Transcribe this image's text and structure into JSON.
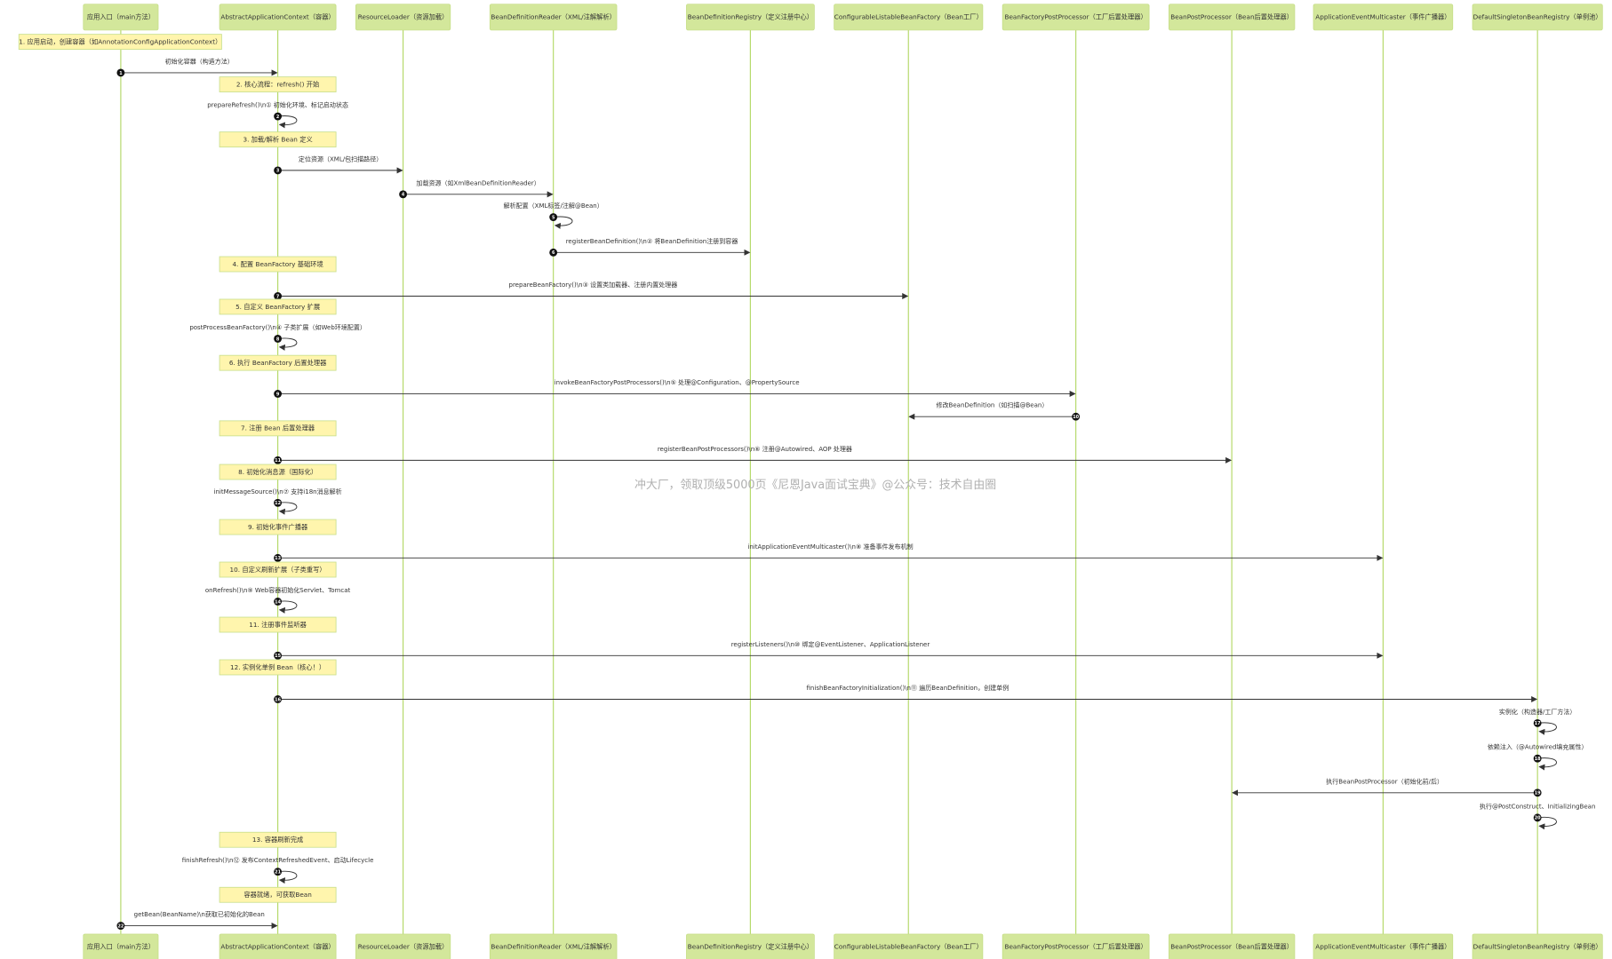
{
  "colors": {
    "participant_fill": "#d3e79b",
    "lifeline": "#b5d96a",
    "note_fill": "#fff5ad",
    "arrow": "#333333"
  },
  "participants": [
    "应用入口（main方法）",
    "AbstractApplicationContext（容器）",
    "ResourceLoader（资源加载）",
    "BeanDefinitionReader（XML/注解解析）",
    "BeanDefinitionRegistry（定义注册中心）",
    "ConfigurableListableBeanFactory（Bean工厂）",
    "BeanFactoryPostProcessor（工厂后置处理器）",
    "BeanPostProcessor（Bean后置处理器）",
    "ApplicationEventMulticaster（事件广播器）",
    "DefaultSingletonBeanRegistry（单例池）"
  ],
  "events": [
    {
      "type": "note",
      "over": [
        0,
        1
      ],
      "text": "1. 应用启动，创建容器（如AnnotationConfigApplicationContext）"
    },
    {
      "type": "msg",
      "n": "1",
      "from": 0,
      "to": 1,
      "text": "初始化容器（构造方法）"
    },
    {
      "type": "note",
      "over": [
        1
      ],
      "text": "2. 核心流程：refresh() 开始"
    },
    {
      "type": "msg",
      "n": "2",
      "from": 1,
      "to": 1,
      "text": "prepareRefresh()\\n① 初始化环境、标记启动状态"
    },
    {
      "type": "note",
      "over": [
        1
      ],
      "text": "3. 加载/解析 Bean 定义"
    },
    {
      "type": "msg",
      "n": "3",
      "from": 1,
      "to": 2,
      "text": "定位资源（XML/包扫描路径）"
    },
    {
      "type": "msg",
      "n": "4",
      "from": 2,
      "to": 3,
      "text": "加载资源（如XmlBeanDefinitionReader）"
    },
    {
      "type": "msg",
      "n": "5",
      "from": 3,
      "to": 3,
      "text": "解析配置（XML标签/注解@Bean）"
    },
    {
      "type": "msg",
      "n": "6",
      "from": 3,
      "to": 4,
      "text": "registerBeanDefinition()\\n② 将BeanDefinition注册到容器"
    },
    {
      "type": "note",
      "over": [
        1
      ],
      "text": "4. 配置 BeanFactory 基础环境"
    },
    {
      "type": "msg",
      "n": "7",
      "from": 1,
      "to": 5,
      "text": "prepareBeanFactory()\\n③ 设置类加载器、注册内置处理器"
    },
    {
      "type": "note",
      "over": [
        1
      ],
      "text": "5. 自定义 BeanFactory 扩展"
    },
    {
      "type": "msg",
      "n": "8",
      "from": 1,
      "to": 1,
      "text": "postProcessBeanFactory()\\n④ 子类扩展（如Web环境配置）"
    },
    {
      "type": "note",
      "over": [
        1
      ],
      "text": "6. 执行 BeanFactory 后置处理器"
    },
    {
      "type": "msg",
      "n": "9",
      "from": 1,
      "to": 6,
      "text": "invokeBeanFactoryPostProcessors()\\n⑤ 处理@Configuration、@PropertySource"
    },
    {
      "type": "msg",
      "n": "10",
      "from": 6,
      "to": 5,
      "text": "修改BeanDefinition（如扫描@Bean）"
    },
    {
      "type": "note",
      "over": [
        1
      ],
      "text": "7. 注册 Bean 后置处理器"
    },
    {
      "type": "msg",
      "n": "11",
      "from": 1,
      "to": 7,
      "text": "registerBeanPostProcessors()\\n⑥ 注册@Autowired、AOP 处理器"
    },
    {
      "type": "note",
      "over": [
        1
      ],
      "text": "8. 初始化消息源（国际化）"
    },
    {
      "type": "msg",
      "n": "12",
      "from": 1,
      "to": 1,
      "text": "initMessageSource()\\n⑦ 支持i18n消息解析"
    },
    {
      "type": "note",
      "over": [
        1
      ],
      "text": "9. 初始化事件广播器"
    },
    {
      "type": "msg",
      "n": "13",
      "from": 1,
      "to": 8,
      "text": "initApplicationEventMulticaster()\\n⑧ 准备事件发布机制"
    },
    {
      "type": "note",
      "over": [
        1
      ],
      "text": "10. 自定义刷新扩展（子类重写）"
    },
    {
      "type": "msg",
      "n": "14",
      "from": 1,
      "to": 1,
      "text": "onRefresh()\\n⑨ Web容器初始化Servlet、Tomcat"
    },
    {
      "type": "note",
      "over": [
        1
      ],
      "text": "11. 注册事件监听器"
    },
    {
      "type": "msg",
      "n": "15",
      "from": 1,
      "to": 8,
      "text": "registerListeners()\\n⑩ 绑定@EventListener、ApplicationListener"
    },
    {
      "type": "note",
      "over": [
        1
      ],
      "text": "12. 实例化单例 Bean（核心！）"
    },
    {
      "type": "msg",
      "n": "16",
      "from": 1,
      "to": 9,
      "text": "finishBeanFactoryInitialization()\\n⑪ 遍历BeanDefinition，创建单例"
    },
    {
      "type": "msg",
      "n": "17",
      "from": 9,
      "to": 9,
      "text": "实例化（构造器/工厂方法）"
    },
    {
      "type": "msg",
      "n": "18",
      "from": 9,
      "to": 9,
      "text": "依赖注入（@Autowired填充属性）"
    },
    {
      "type": "msg",
      "n": "19",
      "from": 9,
      "to": 7,
      "text": "执行BeanPostProcessor（初始化前/后）"
    },
    {
      "type": "msg",
      "n": "20",
      "from": 9,
      "to": 9,
      "text": "执行@PostConstruct、InitializingBean"
    },
    {
      "type": "note",
      "over": [
        1
      ],
      "text": "13. 容器刷新完成"
    },
    {
      "type": "msg",
      "n": "21",
      "from": 1,
      "to": 1,
      "text": "finishRefresh()\\n⑫ 发布ContextRefreshedEvent、启动Lifecycle"
    },
    {
      "type": "note",
      "over": [
        1
      ],
      "text": "容器就绪，可获取Bean"
    },
    {
      "type": "msg",
      "n": "22",
      "from": 0,
      "to": 1,
      "text": "getBean(BeanName)\\n获取已初始化的Bean"
    }
  ],
  "watermark": "冲大厂，领取顶级5000页《尼恩Java面试宝典》@公众号：技术自由圈"
}
